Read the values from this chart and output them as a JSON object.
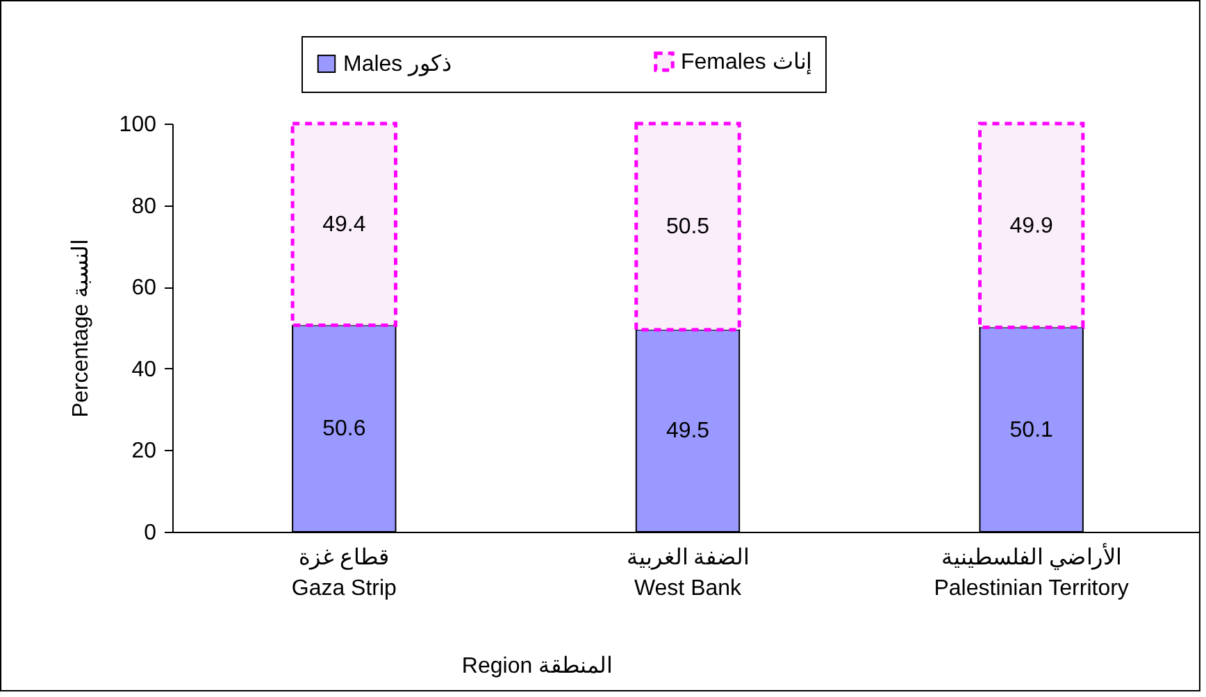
{
  "chart_data": {
    "type": "bar",
    "stacked": true,
    "categories": [
      "قطاع غزة\nGaza Strip",
      "الضفة الغربية\nWest Bank",
      "الأراضي الفلسطينية\nPalestinian Territory"
    ],
    "series": [
      {
        "name": "Males ذكور",
        "color": "#9999ff",
        "values": [
          50.6,
          49.5,
          50.1
        ]
      },
      {
        "name": "Females إناث",
        "color": "#ff00ff",
        "values": [
          49.4,
          50.5,
          49.9
        ]
      }
    ],
    "ylim": [
      0,
      100
    ],
    "yticks": [
      0,
      20,
      40,
      60,
      80,
      100
    ],
    "ylabel": "Percentage النسبة",
    "xlabel": "Region المنطقة",
    "legend": "top",
    "data_labels": true,
    "grid": false
  }
}
